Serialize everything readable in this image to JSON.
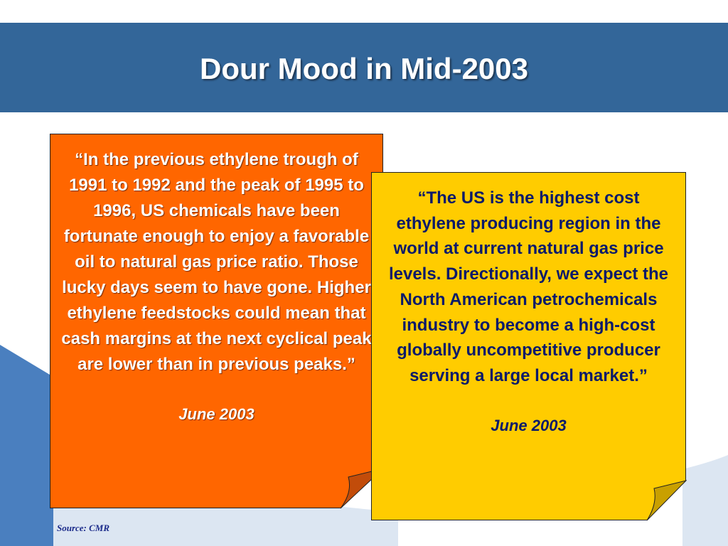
{
  "slide": {
    "title": "Dour Mood in Mid-2003",
    "source": "Source: CMR"
  },
  "quotes": [
    {
      "text": "“In the previous ethylene trough of 1991 to 1992 and the peak of 1995 to 1996, US chemicals have been fortunate enough to enjoy a favorable oil to natural gas price ratio. Those lucky days seem to have gone. Higher ethylene feedstocks could mean that cash margins at the next cyclical peak are lower than in previous peaks.”",
      "date": "June 2003",
      "background": "#ff6600",
      "text_color": "#ffffff"
    },
    {
      "text": "“The US is the highest cost ethylene producing region in the world at current natural gas price levels. Directionally, we expect the North American petrochemicals industry to become a high-cost globally uncompetitive producer serving a large local market.”",
      "date": "June 2003",
      "background": "#ffcc00",
      "text_color": "#0a1a6a"
    }
  ],
  "colors": {
    "title_band": "#336699",
    "decor_blue": "#4a7fbf",
    "decor_light": "#dce6f2"
  }
}
